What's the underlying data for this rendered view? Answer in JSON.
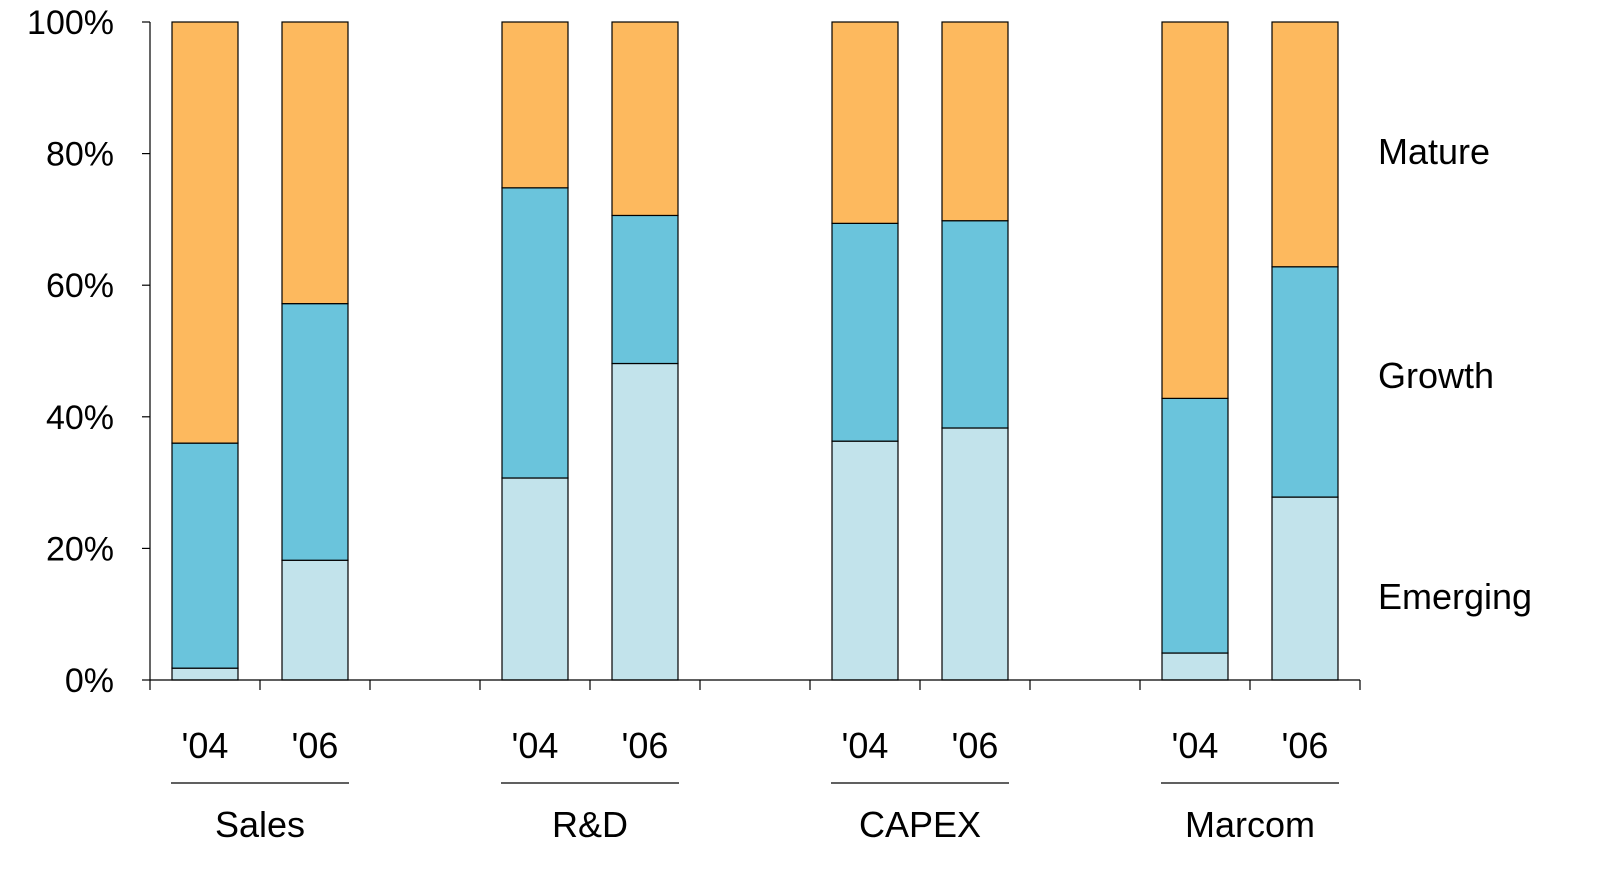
{
  "chart_data": {
    "type": "bar",
    "stacked": true,
    "percent": true,
    "groups": [
      {
        "name": "Sales",
        "bars": [
          {
            "label": "'04",
            "values": [
              1.8,
              34.2,
              64.0
            ]
          },
          {
            "label": "'06",
            "values": [
              18.2,
              39.0,
              42.8
            ]
          }
        ]
      },
      {
        "name": "R&D",
        "bars": [
          {
            "label": "'04",
            "values": [
              30.7,
              44.1,
              25.2
            ]
          },
          {
            "label": "'06",
            "values": [
              48.1,
              22.5,
              29.4
            ]
          }
        ]
      },
      {
        "name": "CAPEX",
        "bars": [
          {
            "label": "'04",
            "values": [
              36.3,
              33.1,
              30.6
            ]
          },
          {
            "label": "'06",
            "values": [
              38.3,
              31.5,
              30.2
            ]
          }
        ]
      },
      {
        "name": "Marcom",
        "bars": [
          {
            "label": "'04",
            "values": [
              4.1,
              38.7,
              57.2
            ]
          },
          {
            "label": "'06",
            "values": [
              27.8,
              35.0,
              37.2
            ]
          }
        ]
      }
    ],
    "series": [
      {
        "name": "Emerging",
        "color": "#c2e3eb"
      },
      {
        "name": "Growth",
        "color": "#6ac4dc"
      },
      {
        "name": "Mature",
        "color": "#fdb95e"
      }
    ],
    "ylim": [
      0,
      100
    ],
    "yticks": [
      "0%",
      "20%",
      "40%",
      "60%",
      "80%",
      "100%"
    ],
    "ytick_values": [
      0,
      20,
      40,
      60,
      80,
      100
    ],
    "legend_placement": "right"
  }
}
